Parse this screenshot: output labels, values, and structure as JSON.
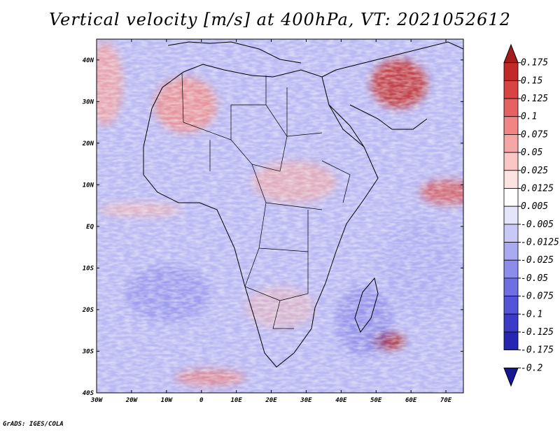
{
  "title": "Vertical velocity [m/s] at 400hPa, VT: 2021052612",
  "footer": "GrADS: IGES/COLA",
  "map": {
    "lon_range": [
      -30,
      75
    ],
    "lat_range": [
      -40,
      45
    ],
    "lon_ticks": [
      "30W",
      "20W",
      "10W",
      "0",
      "10E",
      "20E",
      "30E",
      "40E",
      "50E",
      "60E",
      "70E"
    ],
    "lat_ticks": [
      "40N",
      "30N",
      "20N",
      "10N",
      "EQ",
      "10S",
      "20S",
      "30S",
      "40S"
    ]
  },
  "colorbar": {
    "labels": [
      "0.175",
      "0.15",
      "0.125",
      "0.1",
      "0.075",
      "0.05",
      "0.025",
      "0.0125",
      "0.005",
      "-0.005",
      "-0.0125",
      "-0.025",
      "-0.05",
      "-0.075",
      "-0.1",
      "-0.125",
      "-0.175",
      "-0.2"
    ],
    "colors": [
      "#a61c1c",
      "#c22a2a",
      "#d84444",
      "#e66262",
      "#ef8585",
      "#f5a6a6",
      "#fac6c6",
      "#fde2e2",
      "#ffffff",
      "#e4e4fb",
      "#c9c9f6",
      "#aaaaf1",
      "#8c8ceb",
      "#6f6fe2",
      "#5454d8",
      "#3b3bc8",
      "#2626b2",
      "#161696"
    ]
  }
}
